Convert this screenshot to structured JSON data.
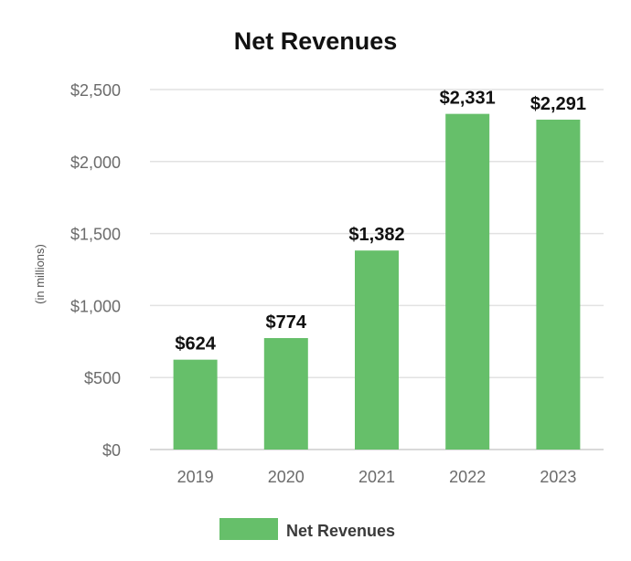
{
  "chart_data": {
    "type": "bar",
    "title": "Net Revenues",
    "xlabel": "",
    "ylabel": "(in millions)",
    "categories": [
      "2019",
      "2020",
      "2021",
      "2022",
      "2023"
    ],
    "series": [
      {
        "name": "Net Revenues",
        "values": [
          624,
          774,
          1382,
          2331,
          2291
        ],
        "labels": [
          "$624",
          "$774",
          "$1,382",
          "$2,331",
          "$2,291"
        ]
      }
    ],
    "ylim": [
      0,
      2500
    ],
    "yticks": [
      0,
      500,
      1000,
      1500,
      2000,
      2500
    ],
    "ytick_labels": [
      "$0",
      "$500",
      "$1,000",
      "$1,500",
      "$2,000",
      "$2,500"
    ],
    "grid": true,
    "legend": "bottom-center"
  },
  "colors": {
    "bar": "#66bf6a",
    "grid": "#e2e2e2",
    "axis": "#d9d9d9"
  }
}
